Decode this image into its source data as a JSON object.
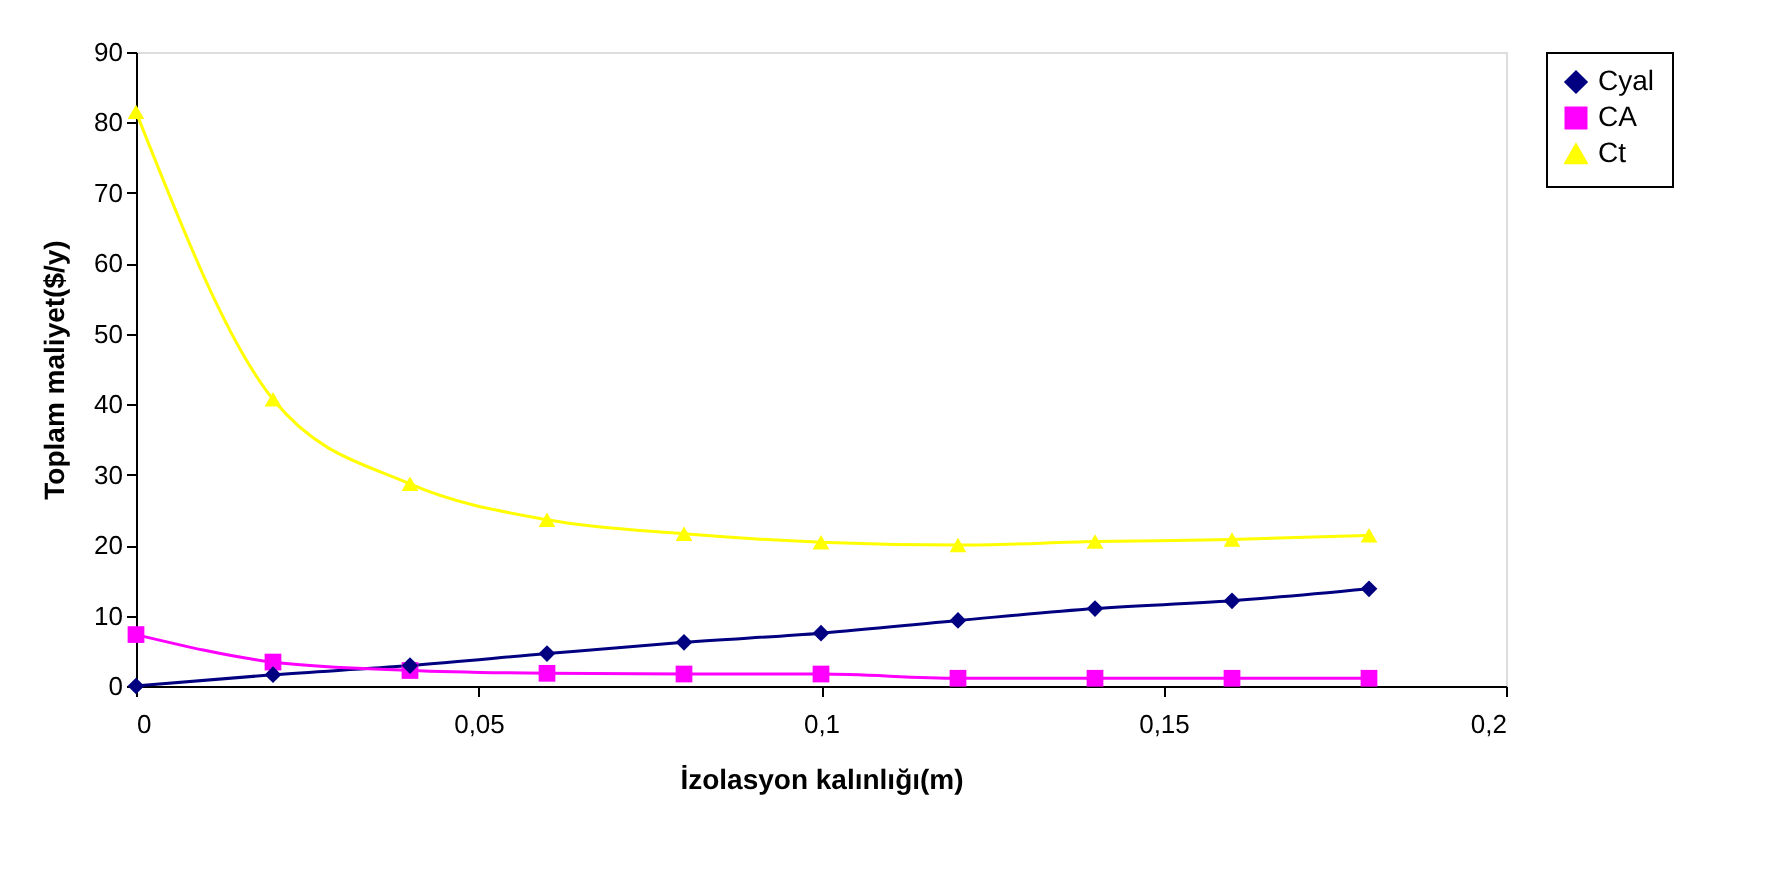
{
  "chart_data": {
    "type": "line",
    "xlabel": "İzolasyon kalınlığı(m)",
    "ylabel": "Toplam maliyet($/y)",
    "x": [
      0,
      0.02,
      0.04,
      0.06,
      0.08,
      0.1,
      0.12,
      0.14,
      0.16,
      0.18
    ],
    "series": [
      {
        "name": "Cyal",
        "color": "#000080",
        "marker": "diamond",
        "values": [
          0,
          1.6,
          2.9,
          4.6,
          6.2,
          7.5,
          9.3,
          11.0,
          12.1,
          13.8
        ]
      },
      {
        "name": "CA",
        "color": "#ff00ff",
        "marker": "square",
        "values": [
          7.3,
          3.4,
          2.2,
          1.8,
          1.7,
          1.7,
          1.1,
          1.1,
          1.1,
          1.1
        ]
      },
      {
        "name": "Ct",
        "color": "#ffff00",
        "marker": "triangle",
        "values": [
          81.5,
          40.7,
          28.7,
          23.6,
          21.6,
          20.4,
          20.0,
          20.5,
          20.8,
          21.4
        ]
      }
    ],
    "xlim": [
      0,
      0.2
    ],
    "xticks": [
      0,
      {
        "value": 0.05,
        "label": "0,05"
      },
      {
        "value": 0.1,
        "label": "0,1"
      },
      {
        "value": 0.15,
        "label": "0,15"
      },
      {
        "value": 0.2,
        "label": "0,2"
      }
    ],
    "ylim": [
      0,
      90
    ],
    "yticks": [
      0,
      10,
      20,
      30,
      40,
      50,
      60,
      70,
      80,
      90
    ],
    "grid": false,
    "legend": "right",
    "line_style": "solid"
  }
}
